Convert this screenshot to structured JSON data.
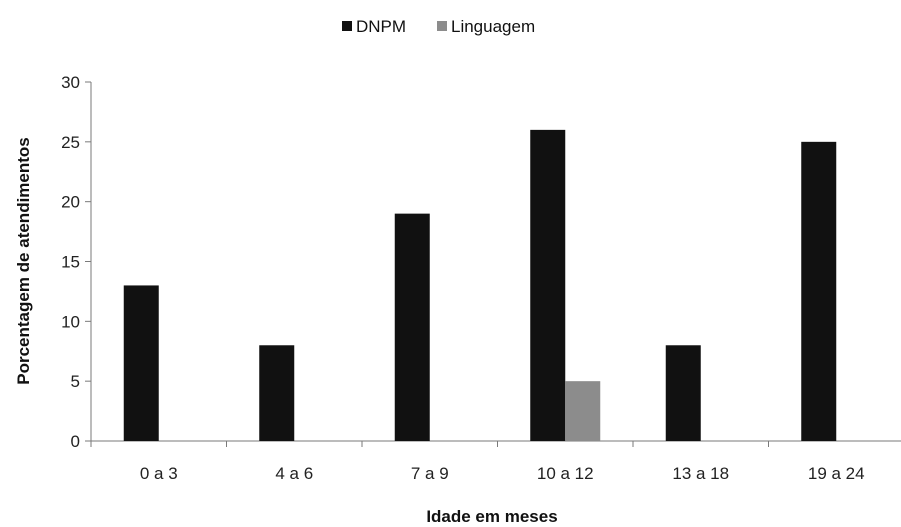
{
  "chart_data": {
    "type": "bar",
    "title": "",
    "xlabel": "Idade em meses",
    "ylabel": "Porcentagem de atendimentos",
    "ylim": [
      0,
      30
    ],
    "yticks": [
      0,
      5,
      10,
      15,
      20,
      25,
      30
    ],
    "categories": [
      "0 a 3",
      "4 a 6",
      "7 a 9",
      "10 a 12",
      "13 a 18",
      "19 a 24"
    ],
    "series": [
      {
        "name": "DNPM",
        "color": "#111111",
        "values": [
          13,
          8,
          19,
          26,
          8,
          25
        ]
      },
      {
        "name": "Linguagem",
        "color": "#8c8c8c",
        "values": [
          0,
          0,
          0,
          5,
          0,
          0
        ]
      }
    ],
    "legend": "top-center",
    "grid": false
  }
}
